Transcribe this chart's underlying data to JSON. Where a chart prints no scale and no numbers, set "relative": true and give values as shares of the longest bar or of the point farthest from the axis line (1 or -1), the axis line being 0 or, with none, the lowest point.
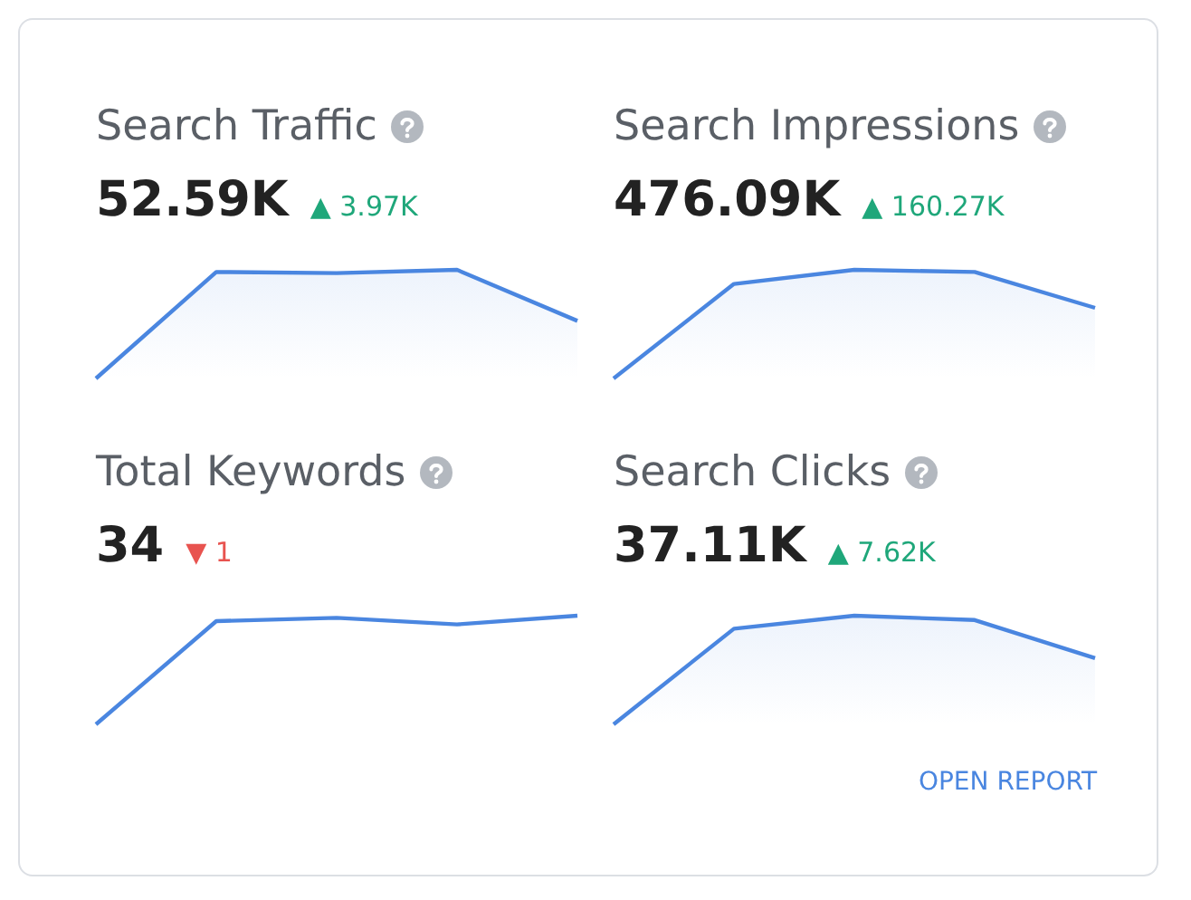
{
  "chart_data": [
    {
      "type": "area",
      "title": "Search Traffic",
      "subtitle": "52.59K",
      "annotations": [
        "▲ 3.97K"
      ],
      "relative": true,
      "categories": [
        null,
        null,
        null,
        null,
        null
      ],
      "series": [
        {
          "color": "#4a86e0",
          "values": [
            0,
            0.98,
            0.97,
            1,
            0.53
          ]
        }
      ]
    },
    {
      "type": "area",
      "title": "Search Impressions",
      "subtitle": "476.09K",
      "annotations": [
        "▲ 160.27K"
      ],
      "relative": true,
      "categories": [
        null,
        null,
        null,
        null,
        null
      ],
      "series": [
        {
          "color": "#4a86e0",
          "values": [
            0,
            0.87,
            1,
            0.98,
            0.65
          ]
        }
      ]
    },
    {
      "type": "area",
      "title": "Total Keywords",
      "subtitle": "34",
      "annotations": [
        "▼ 1"
      ],
      "relative": true,
      "categories": [
        null,
        null,
        null,
        null,
        null
      ],
      "series": [
        {
          "type": "line",
          "color": "#4a86e0",
          "values": [
            0,
            0.95,
            0.98,
            0.92,
            1
          ]
        }
      ]
    },
    {
      "type": "area",
      "title": "Search Clicks",
      "subtitle": "37.11K",
      "annotations": [
        "▲ 7.62K",
        "OPEN REPORT"
      ],
      "relative": true,
      "categories": [
        null,
        null,
        null,
        null,
        null
      ],
      "series": [
        {
          "color": "#4a86e0",
          "values": [
            0,
            0.88,
            1,
            0.96,
            0.61
          ]
        }
      ]
    }
  ]
}
